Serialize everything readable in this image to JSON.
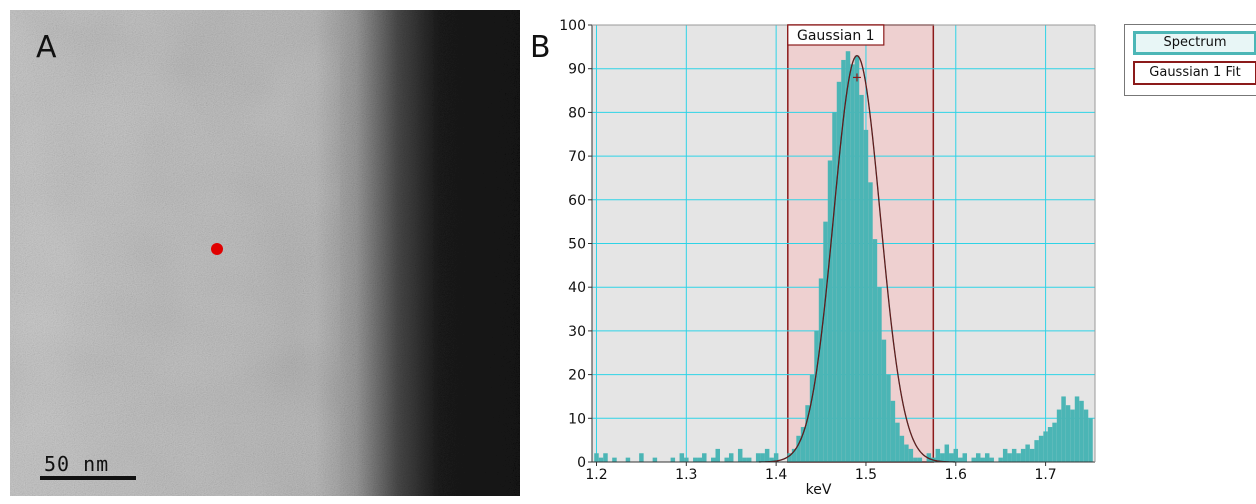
{
  "panel_a": {
    "label": "A",
    "scalebar_text": "50 nm",
    "marker_color": "#e00000"
  },
  "panel_b": {
    "label": "B"
  },
  "chart_data": {
    "type": "bar",
    "title": "",
    "xlabel": "keV",
    "ylabel": "",
    "xlim": [
      1.195,
      1.755
    ],
    "ylim": [
      0,
      100
    ],
    "xticks": [
      1.2,
      1.3,
      1.4,
      1.5,
      1.6,
      1.7
    ],
    "xtick_labels": [
      "1.2",
      "1.3",
      "1.4",
      "1.5",
      "1.6",
      "1.7"
    ],
    "yticks": [
      0,
      10,
      20,
      30,
      40,
      50,
      60,
      70,
      80,
      90,
      100
    ],
    "ytick_labels": [
      "0",
      "10",
      "20",
      "30",
      "40",
      "50",
      "60",
      "70",
      "80",
      "90",
      "100"
    ],
    "grid": true,
    "colors": {
      "plot_background": "#e5e5e5",
      "grid": "#2ed3e6",
      "spectrum": "#4bb5b5",
      "fit_region": "#f0c8c8",
      "fit_region_border": "#8b1a1a",
      "fit_curve": "#222222"
    },
    "x": [
      1.2,
      1.205,
      1.21,
      1.215,
      1.22,
      1.225,
      1.23,
      1.235,
      1.24,
      1.245,
      1.25,
      1.255,
      1.26,
      1.265,
      1.27,
      1.275,
      1.28,
      1.285,
      1.29,
      1.295,
      1.3,
      1.305,
      1.31,
      1.315,
      1.32,
      1.325,
      1.33,
      1.335,
      1.34,
      1.345,
      1.35,
      1.355,
      1.36,
      1.365,
      1.37,
      1.375,
      1.38,
      1.385,
      1.39,
      1.395,
      1.4,
      1.405,
      1.41,
      1.415,
      1.42,
      1.425,
      1.43,
      1.435,
      1.44,
      1.445,
      1.45,
      1.455,
      1.46,
      1.465,
      1.47,
      1.475,
      1.48,
      1.485,
      1.49,
      1.495,
      1.5,
      1.505,
      1.51,
      1.515,
      1.52,
      1.525,
      1.53,
      1.535,
      1.54,
      1.545,
      1.55,
      1.555,
      1.56,
      1.565,
      1.57,
      1.575,
      1.58,
      1.585,
      1.59,
      1.595,
      1.6,
      1.605,
      1.61,
      1.615,
      1.62,
      1.625,
      1.63,
      1.635,
      1.64,
      1.645,
      1.65,
      1.655,
      1.66,
      1.665,
      1.67,
      1.675,
      1.68,
      1.685,
      1.69,
      1.695,
      1.7,
      1.705,
      1.71,
      1.715,
      1.72,
      1.725,
      1.73,
      1.735,
      1.74,
      1.745,
      1.75
    ],
    "series": [
      {
        "values": [
          2,
          1,
          2,
          0,
          1,
          0,
          0,
          1,
          0,
          0,
          2,
          0,
          0,
          1,
          0,
          0,
          0,
          1,
          0,
          2,
          1,
          0,
          1,
          1,
          2,
          0,
          1,
          3,
          0,
          1,
          2,
          0,
          3,
          1,
          1,
          0,
          2,
          2,
          3,
          1,
          2,
          0,
          0,
          2,
          3,
          6,
          8,
          13,
          20,
          30,
          42,
          55,
          69,
          80,
          87,
          92,
          94,
          91,
          93,
          84,
          76,
          64,
          51,
          40,
          28,
          20,
          14,
          9,
          6,
          4,
          3,
          1,
          1,
          0,
          2,
          1,
          3,
          2,
          4,
          2,
          3,
          1,
          2,
          0,
          1,
          2,
          1,
          2,
          1,
          0,
          1,
          3,
          2,
          3,
          2,
          3,
          4,
          3,
          5,
          6,
          7,
          8,
          9,
          12,
          15,
          13,
          12,
          15,
          14,
          12,
          10
        ]
      }
    ],
    "fit": {
      "label": "Gaussian 1",
      "region": [
        1.413,
        1.575
      ],
      "center": 1.49,
      "peak": 93,
      "sigma": 0.026
    },
    "legend": {
      "position": "top-right",
      "entries": [
        "Spectrum",
        "Gaussian 1 Fit"
      ]
    }
  }
}
